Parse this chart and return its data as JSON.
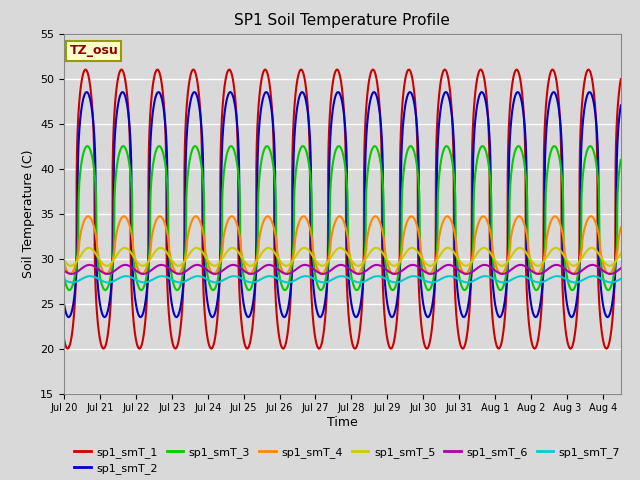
{
  "title": "SP1 Soil Temperature Profile",
  "xlabel": "Time",
  "ylabel": "Soil Temperature (C)",
  "ylim": [
    15,
    55
  ],
  "yticks": [
    15,
    20,
    25,
    30,
    35,
    40,
    45,
    50,
    55
  ],
  "xlim_days": [
    0.0,
    15.5
  ],
  "x_tick_labels": [
    "Jul 20",
    "Jul 21",
    "Jul 22",
    "Jul 23",
    "Jul 24",
    "Jul 25",
    "Jul 26",
    "Jul 27",
    "Jul 28",
    "Jul 29",
    "Jul 30",
    "Jul 31",
    "Aug 1",
    "Aug 2",
    "Aug 3",
    "Aug 4"
  ],
  "x_tick_positions": [
    0,
    1,
    2,
    3,
    4,
    5,
    6,
    7,
    8,
    9,
    10,
    11,
    12,
    13,
    14,
    15
  ],
  "series": [
    {
      "name": "sp1_smT_1",
      "color": "#cc0000",
      "amplitude": 15.5,
      "mean": 35.5,
      "phase": 0.35,
      "power": 3.0
    },
    {
      "name": "sp1_smT_2",
      "color": "#0000cc",
      "amplitude": 12.5,
      "mean": 36.0,
      "phase": 0.38,
      "power": 3.0
    },
    {
      "name": "sp1_smT_3",
      "color": "#00cc00",
      "amplitude": 8.0,
      "mean": 34.5,
      "phase": 0.4,
      "power": 2.5
    },
    {
      "name": "sp1_smT_4",
      "color": "#ff8800",
      "amplitude": 3.2,
      "mean": 31.5,
      "phase": 0.42,
      "power": 1.5
    },
    {
      "name": "sp1_smT_5",
      "color": "#cccc00",
      "amplitude": 1.0,
      "mean": 30.2,
      "phase": 0.44,
      "power": 1.0
    },
    {
      "name": "sp1_smT_6",
      "color": "#aa00aa",
      "amplitude": 0.5,
      "mean": 28.8,
      "phase": 0.46,
      "power": 1.0
    },
    {
      "name": "sp1_smT_7",
      "color": "#00cccc",
      "amplitude": 0.35,
      "mean": 27.7,
      "phase": 0.48,
      "power": 1.0
    }
  ],
  "annotation_text": "TZ_osu",
  "annotation_color": "#8b0000",
  "annotation_bg": "#ffffcc",
  "annotation_border": "#999900",
  "background_color": "#d9d9d9",
  "plot_bg_color": "#d9d9d9",
  "grid_color": "#ffffff",
  "title_fontsize": 11,
  "axis_fontsize": 9,
  "tick_fontsize": 8,
  "legend_fontsize": 8,
  "line_width": 1.5
}
